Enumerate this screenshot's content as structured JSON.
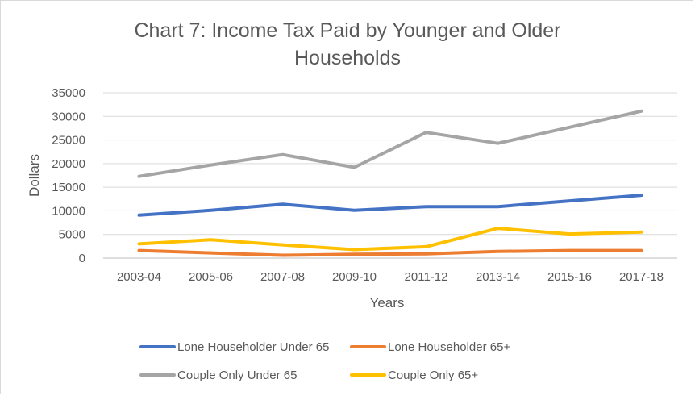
{
  "chart_data": {
    "type": "line",
    "title_line1": "Chart 7: Income Tax Paid by Younger and Older",
    "title_line2": "Households",
    "xlabel": "Years",
    "ylabel": "Dollars",
    "ylim": [
      0,
      35000
    ],
    "y_ticks": [
      "0",
      "5000",
      "10000",
      "15000",
      "20000",
      "25000",
      "30000",
      "35000"
    ],
    "categories": [
      "2003-04",
      "2005-06",
      "2007-08",
      "2009-10",
      "2011-12",
      "2013-14",
      "2015-16",
      "2017-18"
    ],
    "grid": true,
    "legend_position": "bottom",
    "series": [
      {
        "name": "Lone Householder Under 65",
        "color": "#4472c4",
        "values": [
          9100,
          10100,
          11400,
          10100,
          10900,
          10900,
          12100,
          13300
        ]
      },
      {
        "name": "Lone Householder 65+",
        "color": "#ed7d31",
        "values": [
          1600,
          1100,
          600,
          800,
          900,
          1400,
          1600,
          1600
        ]
      },
      {
        "name": "Couple Only Under 65",
        "color": "#a5a5a5",
        "values": [
          17300,
          19700,
          21900,
          19200,
          26600,
          24300,
          27700,
          31100
        ]
      },
      {
        "name": "Couple Only 65+",
        "color": "#ffc000",
        "values": [
          3000,
          3900,
          2800,
          1800,
          2400,
          6300,
          5100,
          5500
        ]
      }
    ]
  }
}
